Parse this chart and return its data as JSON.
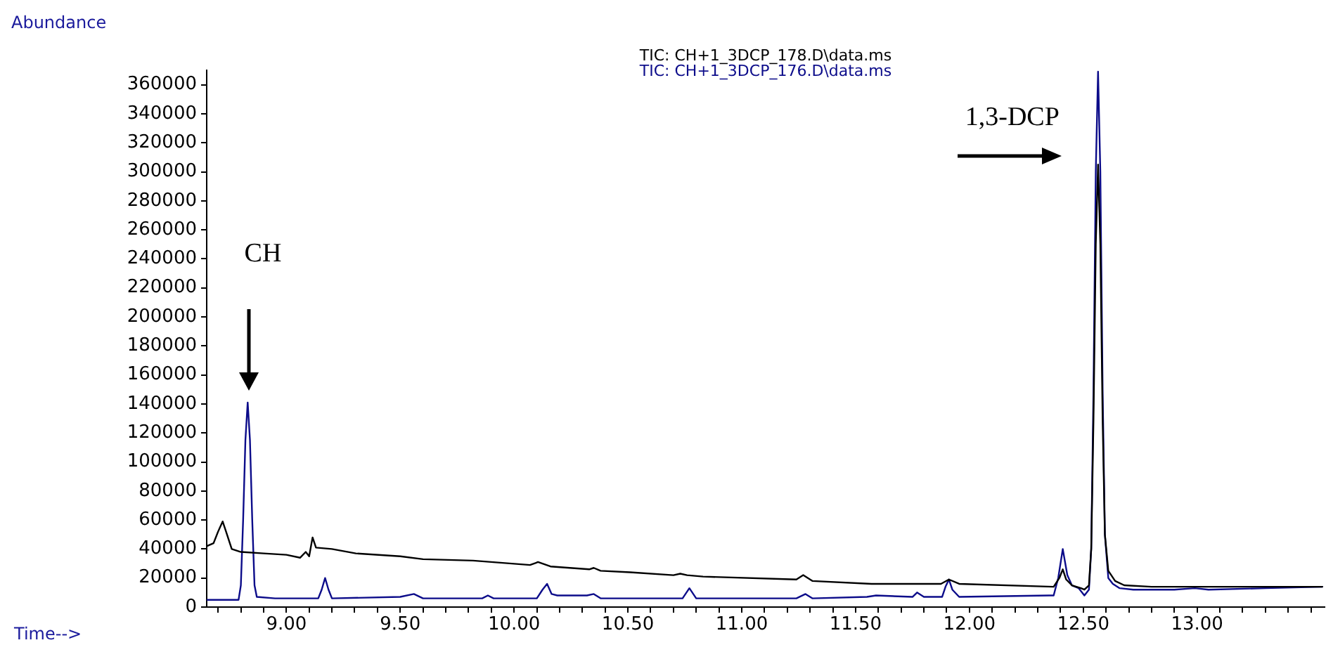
{
  "chart_data": {
    "type": "line",
    "xlabel": "Time-->",
    "ylabel": "Abundance",
    "legend": "top",
    "xlim": [
      8.65,
      13.56
    ],
    "ylim": [
      0,
      370000
    ],
    "xticks": [
      {
        "value": 8.7,
        "label": null
      },
      {
        "value": 8.8,
        "label": null
      },
      {
        "value": 8.9,
        "label": null
      },
      {
        "value": 9,
        "label": "9.00"
      },
      {
        "value": 9.1,
        "label": null
      },
      {
        "value": 9.2,
        "label": null
      },
      {
        "value": 9.3,
        "label": null
      },
      {
        "value": 9.4,
        "label": null
      },
      {
        "value": 9.5,
        "label": "9.50"
      },
      {
        "value": 9.6,
        "label": null
      },
      {
        "value": 9.7,
        "label": null
      },
      {
        "value": 9.8,
        "label": null
      },
      {
        "value": 9.9,
        "label": null
      },
      {
        "value": 10,
        "label": "10.00"
      },
      {
        "value": 10.1,
        "label": null
      },
      {
        "value": 10.2,
        "label": null
      },
      {
        "value": 10.3,
        "label": null
      },
      {
        "value": 10.4,
        "label": null
      },
      {
        "value": 10.5,
        "label": "10.50"
      },
      {
        "value": 10.6,
        "label": null
      },
      {
        "value": 10.7,
        "label": null
      },
      {
        "value": 10.8,
        "label": null
      },
      {
        "value": 10.9,
        "label": null
      },
      {
        "value": 11,
        "label": "11.00"
      },
      {
        "value": 11.1,
        "label": null
      },
      {
        "value": 11.2,
        "label": null
      },
      {
        "value": 11.3,
        "label": null
      },
      {
        "value": 11.4,
        "label": null
      },
      {
        "value": 11.5,
        "label": "11.50"
      },
      {
        "value": 11.6,
        "label": null
      },
      {
        "value": 11.7,
        "label": null
      },
      {
        "value": 11.8,
        "label": null
      },
      {
        "value": 11.9,
        "label": null
      },
      {
        "value": 12,
        "label": "12.00"
      },
      {
        "value": 12.1,
        "label": null
      },
      {
        "value": 12.2,
        "label": null
      },
      {
        "value": 12.3,
        "label": null
      },
      {
        "value": 12.4,
        "label": null
      },
      {
        "value": 12.5,
        "label": "12.50"
      },
      {
        "value": 12.6,
        "label": null
      },
      {
        "value": 12.7,
        "label": null
      },
      {
        "value": 12.8,
        "label": null
      },
      {
        "value": 12.9,
        "label": null
      },
      {
        "value": 13,
        "label": "13.00"
      },
      {
        "value": 13.1,
        "label": null
      },
      {
        "value": 13.2,
        "label": null
      },
      {
        "value": 13.3,
        "label": null
      },
      {
        "value": 13.4,
        "label": null
      },
      {
        "value": 13.5,
        "label": null
      }
    ],
    "yticks": [
      0,
      20000,
      40000,
      60000,
      80000,
      100000,
      120000,
      140000,
      160000,
      180000,
      200000,
      220000,
      240000,
      260000,
      280000,
      300000,
      320000,
      340000,
      360000
    ],
    "annotations": [
      "CH",
      {
        "text": "1,3-DCP",
        "x": 12.565,
        "y": 311000
      }
    ],
    "series": [
      {
        "name": "TIC: CH+1_3DCP_178.D\\data.ms",
        "color": "#000000",
        "x": [
          8.65,
          8.68,
          8.7,
          8.72,
          8.735,
          8.76,
          8.8,
          8.9,
          9.0,
          9.06,
          9.085,
          9.1,
          9.115,
          9.13,
          9.2,
          9.305,
          9.5,
          9.6,
          9.82,
          10.07,
          10.105,
          10.16,
          10.33,
          10.35,
          10.38,
          10.51,
          10.7,
          10.73,
          10.76,
          10.83,
          11.24,
          11.27,
          11.31,
          11.57,
          11.875,
          11.91,
          11.955,
          12.37,
          12.395,
          12.41,
          12.425,
          12.45,
          12.49,
          12.505,
          12.525,
          12.535,
          12.545,
          12.555,
          12.565,
          12.575,
          12.585,
          12.595,
          12.61,
          12.64,
          12.68,
          12.8,
          13.01,
          13.21,
          13.55
        ],
        "values": [
          42000,
          44000,
          52000,
          59000,
          52000,
          40000,
          38000,
          37000,
          36000,
          34000,
          38000,
          35000,
          48000,
          41000,
          40000,
          37000,
          35000,
          33000,
          32000,
          29000,
          31000,
          28000,
          26000,
          27000,
          25000,
          24000,
          22000,
          23000,
          22000,
          21000,
          19000,
          22000,
          18000,
          16000,
          16000,
          19000,
          16000,
          14000,
          20000,
          26000,
          19000,
          15000,
          13000,
          12000,
          15000,
          40000,
          130000,
          250000,
          305000,
          250000,
          130000,
          50000,
          25000,
          18000,
          15000,
          14000,
          14000,
          14000,
          14000
        ]
      },
      {
        "name": "TIC: CH+1_3DCP_176.D\\data.ms",
        "color": "#0c0c8a",
        "x": [
          8.65,
          8.79,
          8.8,
          8.81,
          8.82,
          8.83,
          8.84,
          8.85,
          8.86,
          8.87,
          8.95,
          9.14,
          9.155,
          9.17,
          9.185,
          9.2,
          9.5,
          9.56,
          9.6,
          9.86,
          9.885,
          9.91,
          10.1,
          10.125,
          10.145,
          10.165,
          10.19,
          10.32,
          10.35,
          10.38,
          10.74,
          10.77,
          10.8,
          11.24,
          11.28,
          11.31,
          11.55,
          11.59,
          11.75,
          11.77,
          11.8,
          11.88,
          11.895,
          11.91,
          11.925,
          11.955,
          12.35,
          12.37,
          12.39,
          12.41,
          12.43,
          12.45,
          12.48,
          12.505,
          12.525,
          12.535,
          12.545,
          12.555,
          12.565,
          12.575,
          12.585,
          12.595,
          12.61,
          12.63,
          12.66,
          12.72,
          12.9,
          12.99,
          13.05,
          13.3,
          13.55
        ],
        "values": [
          5000,
          5000,
          15000,
          60000,
          115000,
          141000,
          115000,
          60000,
          15000,
          7000,
          6000,
          6000,
          12000,
          20000,
          12000,
          6000,
          7000,
          9000,
          6000,
          6000,
          8000,
          6000,
          6000,
          12000,
          16000,
          9000,
          8000,
          8000,
          9000,
          6000,
          6000,
          13000,
          6000,
          6000,
          9000,
          6000,
          7000,
          8000,
          7000,
          10000,
          7000,
          7000,
          14000,
          19000,
          12000,
          7000,
          8000,
          8000,
          20000,
          40000,
          22000,
          15000,
          13000,
          8000,
          12000,
          40000,
          150000,
          300000,
          369000,
          300000,
          150000,
          50000,
          20000,
          16000,
          13000,
          12000,
          12000,
          13000,
          12000,
          13000,
          14000
        ]
      }
    ]
  }
}
